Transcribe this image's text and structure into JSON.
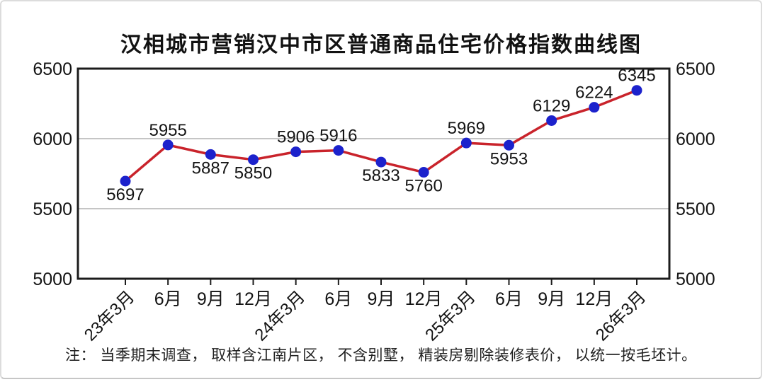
{
  "header": {
    "title": "汉相城市营销汉中市区普通商品住宅价格指数曲线图"
  },
  "footer": {
    "note": "注： 当季期末调查， 取样含江南片区， 不含别墅， 精装房剔除装修表价， 以统一按毛坯计。"
  },
  "chart_data": {
    "type": "line",
    "title": "汉相城市营销汉中市区普通商品住宅价格指数曲线图",
    "categories": [
      "23年3月",
      "6月",
      "9月",
      "12月",
      "24年3月",
      "6月",
      "9月",
      "12月",
      "25年3月",
      "6月",
      "9月",
      "12月",
      "26年3月"
    ],
    "values": [
      5697,
      5955,
      5887,
      5850,
      5906,
      5916,
      5833,
      5760,
      5969,
      5953,
      6129,
      6224,
      6345
    ],
    "label_positions": [
      "below",
      "above",
      "below",
      "below",
      "above",
      "above",
      "below",
      "below",
      "above",
      "below",
      "above",
      "above",
      "above"
    ],
    "xlabel": "",
    "ylabel": "",
    "ylim": [
      5000,
      6500
    ],
    "yticks": [
      5000,
      5500,
      6000,
      6500
    ],
    "grid": true,
    "legend_position": "none",
    "dual_y_axis": true,
    "line_color": "#c9232b",
    "marker_color": "#1c22cc",
    "grid_color": "#b2b2b2",
    "axis_color": "#1c1c1c",
    "label_color": "#141414"
  }
}
